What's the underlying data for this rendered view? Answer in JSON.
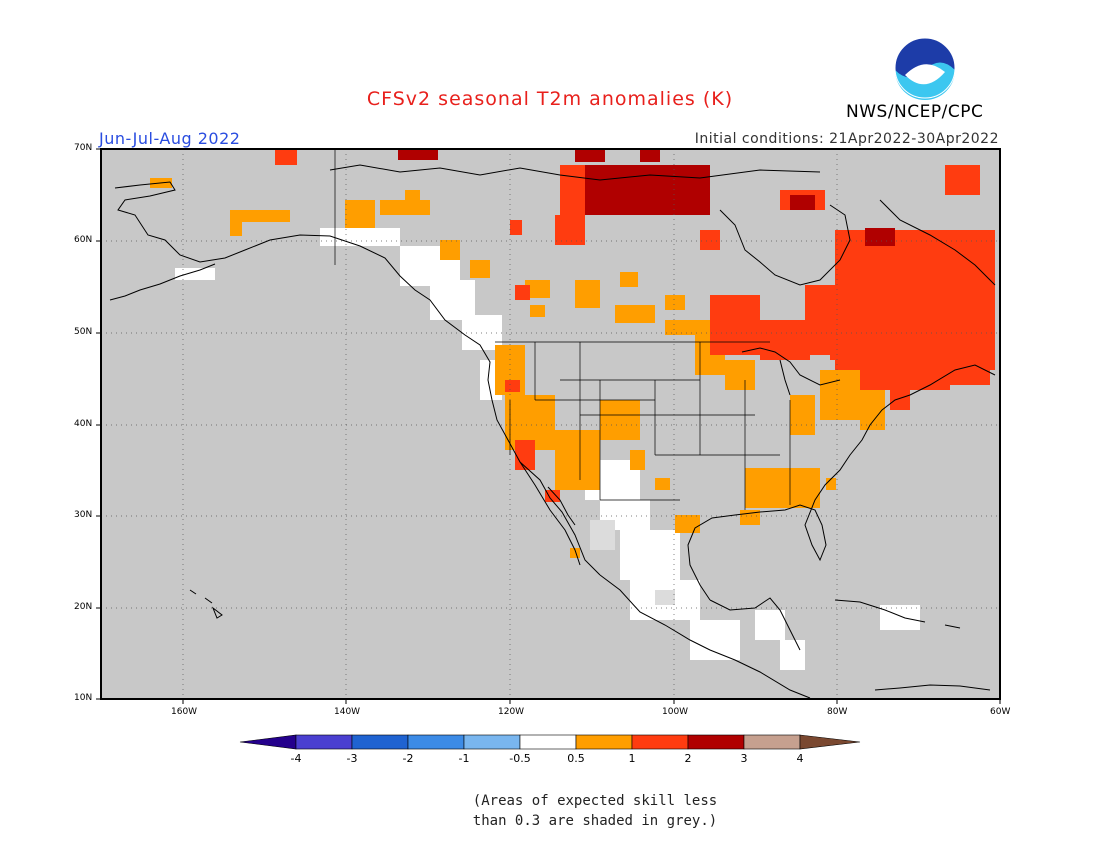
{
  "header": {
    "title": "CFSv2 seasonal T2m anomalies (K)",
    "agency": "NWS/NCEP/CPC",
    "season": "Jun-Jul-Aug 2022",
    "initial_conditions": "Initial conditions: 21Apr2022-30Apr2022",
    "logo_text": "NOAA"
  },
  "map": {
    "lon_range": [
      -170,
      -60
    ],
    "lat_range": [
      10,
      70
    ],
    "lat_labels": [
      "70N",
      "60N",
      "50N",
      "40N",
      "30N",
      "20N",
      "10N"
    ],
    "lon_labels": [
      "160W",
      "140W",
      "120W",
      "100W",
      "80W",
      "60W"
    ],
    "no_skill_color": "#c8c8c8",
    "gridlines": "dotted"
  },
  "colorbar": {
    "bins": [
      {
        "color": "#24008c"
      },
      {
        "color": "#4a3fd0"
      },
      {
        "color": "#1f63d1"
      },
      {
        "color": "#3c8be6"
      },
      {
        "color": "#79b6ef"
      },
      {
        "color": "#ffffff"
      },
      {
        "color": "#ff9e00"
      },
      {
        "color": "#ff3c10"
      },
      {
        "color": "#b00000"
      },
      {
        "color": "#c6a08f"
      },
      {
        "color": "#7a4830"
      }
    ],
    "labels": [
      "-4",
      "-3",
      "-2",
      "-1",
      "-0.5",
      "0.5",
      "1",
      "2",
      "3",
      "4"
    ]
  },
  "notes": {
    "line1": "(Areas of expected skill less",
    "line2": "than 0.3 are shaded in grey.)"
  }
}
